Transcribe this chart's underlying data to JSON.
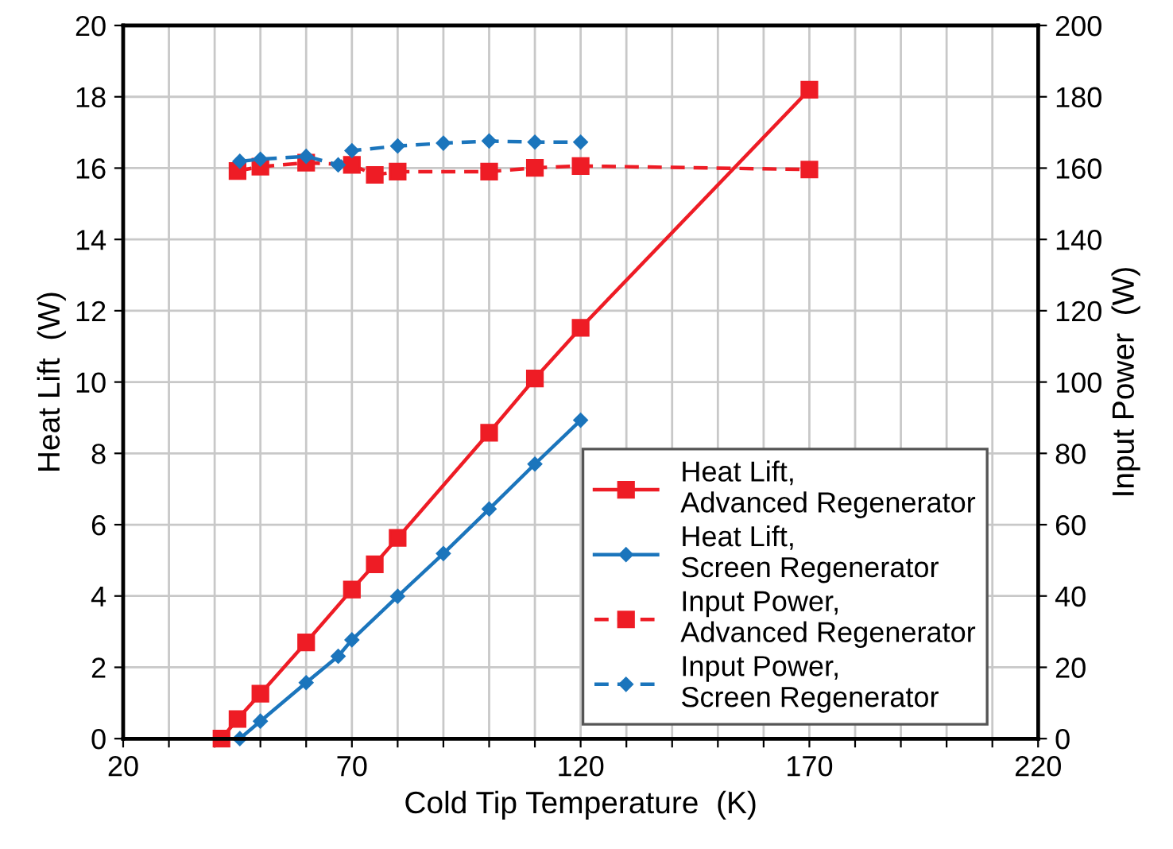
{
  "chart_data": {
    "type": "line",
    "xlabel": "Cold Tip Temperature  (K)",
    "ylabel": "Heat Lift  (W)",
    "y2label": "Input Power  (W)",
    "xlim": [
      20,
      220
    ],
    "xticks": [
      20,
      {
        "value": 30,
        "label": null
      },
      {
        "value": 40,
        "label": null
      },
      {
        "value": 50,
        "label": null
      },
      {
        "value": 60,
        "label": null
      },
      70,
      {
        "value": 80,
        "label": null
      },
      {
        "value": 90,
        "label": null
      },
      {
        "value": 100,
        "label": null
      },
      {
        "value": 110,
        "label": null
      },
      120,
      {
        "value": 130,
        "label": null
      },
      {
        "value": 140,
        "label": null
      },
      {
        "value": 150,
        "label": null
      },
      {
        "value": 160,
        "label": null
      },
      170,
      {
        "value": 180,
        "label": null
      },
      {
        "value": 190,
        "label": null
      },
      {
        "value": 200,
        "label": null
      },
      {
        "value": 210,
        "label": null
      },
      220
    ],
    "ylim": [
      0,
      20
    ],
    "yticks": [
      0,
      2,
      4,
      6,
      8,
      10,
      12,
      14,
      16,
      18,
      20
    ],
    "y2lim": [
      0,
      200
    ],
    "y2ticks": [
      0,
      20,
      40,
      60,
      80,
      100,
      120,
      140,
      160,
      180,
      200
    ],
    "grid": true,
    "legend": "bottom right",
    "series": [
      {
        "name": "Heat Lift, Advanced Regenerator",
        "color": "#ee1c25",
        "marker": "square",
        "line_style": "solid",
        "x": [
          41.5,
          45,
          50,
          60,
          70,
          75,
          80,
          100,
          110,
          120,
          170
        ],
        "values": [
          0,
          0.55,
          1.26,
          2.7,
          4.18,
          4.89,
          5.63,
          8.58,
          10.1,
          11.52,
          18.2
        ]
      },
      {
        "name": "Heat Lift, Screen Regenerator",
        "color": "#1b75bc",
        "marker": "diamond",
        "line_style": "solid",
        "x": [
          45.5,
          50,
          60,
          67,
          70,
          80,
          90,
          100,
          110,
          120
        ],
        "values": [
          0,
          0.49,
          1.57,
          2.31,
          2.77,
          3.99,
          5.19,
          6.44,
          7.7,
          8.93
        ]
      },
      {
        "name": "Input Power, Advanced Regenerator",
        "color": "#ee1c25",
        "marker": "square",
        "line_style": "dashed",
        "axis": "y2",
        "x": [
          45,
          50,
          60,
          70,
          75,
          80,
          100,
          110,
          120,
          170
        ],
        "values": [
          159.2,
          160.4,
          161.5,
          160.9,
          158.1,
          159,
          159,
          160.1,
          160.6,
          159.6
        ]
      },
      {
        "name": "Input Power, Screen Regenerator",
        "color": "#1b75bc",
        "marker": "diamond",
        "line_style": "dashed",
        "axis": "y2",
        "x": [
          45.5,
          50,
          60,
          67,
          70,
          80,
          90,
          100,
          110,
          120
        ],
        "values": [
          161.9,
          162.5,
          163.3,
          160.9,
          164.9,
          166.2,
          167,
          167.6,
          167.3,
          167.3
        ]
      }
    ]
  }
}
